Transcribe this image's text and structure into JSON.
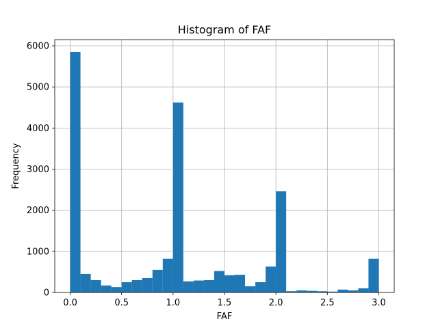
{
  "chart_data": {
    "type": "bar",
    "title": "Histogram of FAF",
    "xlabel": "FAF",
    "ylabel": "Frequency",
    "xlim": [
      -0.15,
      3.15
    ],
    "ylim": [
      0,
      6150
    ],
    "xticks": [
      "0.0",
      "0.5",
      "1.0",
      "1.5",
      "2.0",
      "2.5",
      "3.0"
    ],
    "yticks": [
      "0",
      "1000",
      "2000",
      "3000",
      "4000",
      "5000",
      "6000"
    ],
    "grid": true,
    "bar_color": "#1f77b4",
    "bins": {
      "start": 0.0,
      "end": 3.0,
      "count": 30
    },
    "values": [
      5850,
      450,
      300,
      170,
      130,
      250,
      300,
      350,
      550,
      820,
      4620,
      270,
      290,
      300,
      520,
      420,
      430,
      150,
      250,
      630,
      2460,
      30,
      50,
      40,
      30,
      20,
      70,
      50,
      100,
      820
    ]
  }
}
